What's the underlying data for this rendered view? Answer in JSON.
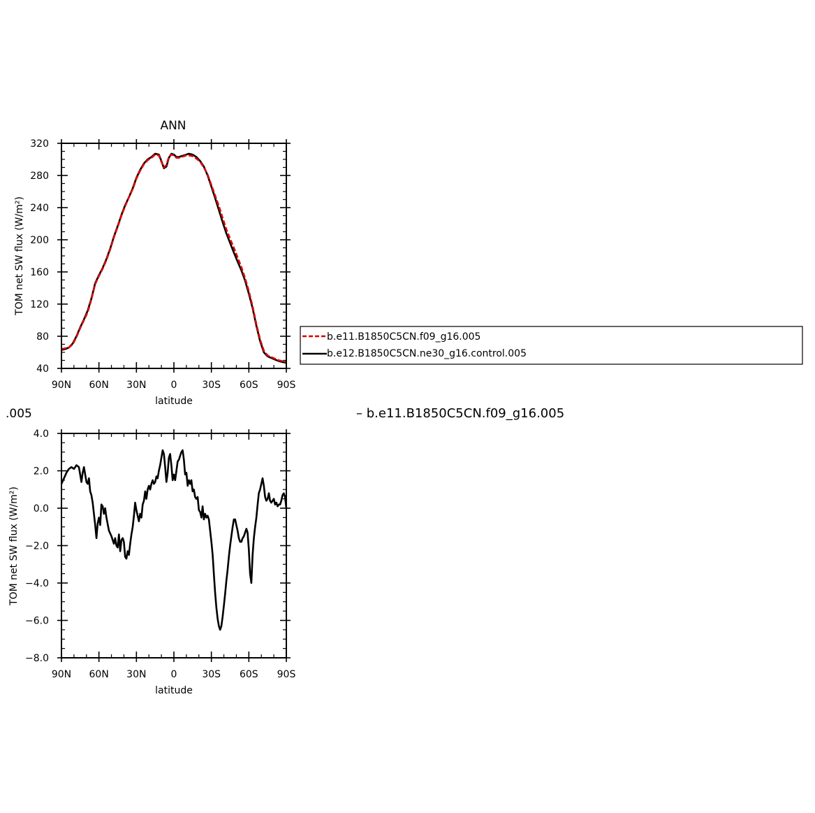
{
  "chart_data": [
    {
      "type": "line",
      "title": "ANN",
      "xlabel": "latitude",
      "ylabel": "TOM net SW flux (W/m²)",
      "xlim": [
        90,
        -90
      ],
      "ylim": [
        40,
        320
      ],
      "x_ticks": [
        90,
        60,
        30,
        0,
        -30,
        -60,
        -90
      ],
      "x_tick_labels": [
        "90N",
        "60N",
        "30N",
        "0",
        "30S",
        "60S",
        "90S"
      ],
      "y_ticks": [
        40,
        80,
        120,
        160,
        200,
        240,
        280,
        320
      ],
      "y_tick_labels": [
        "40",
        "80",
        "120",
        "160",
        "200",
        "240",
        "280",
        "320"
      ],
      "grid": false,
      "legend": "right",
      "series": [
        {
          "name": "b.e11.B1850C5CN.f09_g16.005",
          "color": "#e00000",
          "dash": "dashed",
          "x": [
            90,
            87,
            84,
            81,
            78,
            75,
            72,
            69,
            66,
            63,
            60,
            57,
            54,
            51,
            48,
            45,
            42,
            39,
            36,
            33,
            30,
            27,
            24,
            21,
            18,
            15,
            12,
            10,
            8,
            6,
            4,
            2,
            0,
            -2,
            -4,
            -6,
            -8,
            -10,
            -12,
            -15,
            -18,
            -21,
            -24,
            -27,
            -30,
            -33,
            -36,
            -39,
            -42,
            -45,
            -48,
            -51,
            -54,
            -57,
            -60,
            -63,
            -66,
            -69,
            -72,
            -75,
            -78,
            -81,
            -84,
            -87,
            -90
          ],
          "y": [
            64,
            65,
            66,
            70,
            79,
            90,
            100,
            110,
            126,
            145,
            155,
            164,
            175,
            188,
            203,
            216,
            230,
            242,
            253,
            263,
            276,
            286,
            294,
            299,
            302,
            306,
            305,
            297,
            290,
            293,
            303,
            306,
            305,
            302,
            302,
            303,
            304,
            305,
            305,
            304,
            301,
            297,
            290,
            281,
            268,
            255,
            242,
            227,
            213,
            201,
            190,
            178,
            166,
            152,
            136,
            117,
            95,
            76,
            62,
            56,
            54,
            52,
            50,
            49,
            48
          ]
        },
        {
          "name": "b.e12.B1850C5CN.ne30_g16.control.005",
          "color": "#000000",
          "dash": "solid",
          "x": [
            90,
            87,
            84,
            81,
            78,
            75,
            72,
            69,
            66,
            63,
            60,
            57,
            54,
            51,
            48,
            45,
            42,
            39,
            36,
            33,
            30,
            27,
            24,
            21,
            18,
            15,
            12,
            10,
            8,
            6,
            4,
            2,
            0,
            -2,
            -4,
            -6,
            -8,
            -10,
            -12,
            -15,
            -18,
            -21,
            -24,
            -27,
            -30,
            -33,
            -36,
            -39,
            -42,
            -45,
            -48,
            -51,
            -54,
            -57,
            -60,
            -63,
            -66,
            -69,
            -72,
            -75,
            -78,
            -81,
            -84,
            -87,
            -90
          ],
          "y": [
            63,
            64,
            66,
            71,
            80,
            91,
            101,
            112,
            127,
            146,
            156,
            165,
            176,
            189,
            204,
            217,
            231,
            243,
            253,
            264,
            277,
            287,
            295,
            300,
            303,
            307,
            306,
            298,
            289,
            291,
            302,
            307,
            306,
            303,
            303,
            304,
            305,
            306,
            307,
            306,
            303,
            298,
            291,
            280,
            266,
            252,
            237,
            222,
            208,
            196,
            184,
            173,
            162,
            149,
            133,
            115,
            93,
            74,
            60,
            55,
            53,
            51,
            49,
            48,
            47
          ]
        }
      ]
    },
    {
      "type": "line",
      "title": "",
      "xlabel": "latitude",
      "ylabel": "TOM net SW flux (W/m²)",
      "xlim": [
        90,
        -90
      ],
      "ylim": [
        -8,
        4
      ],
      "x_ticks": [
        90,
        60,
        30,
        0,
        -30,
        -60,
        -90
      ],
      "x_tick_labels": [
        "90N",
        "60N",
        "30N",
        "0",
        "30S",
        "60S",
        "90S"
      ],
      "y_ticks": [
        -8,
        -6,
        -4,
        -2,
        0,
        2,
        4
      ],
      "y_tick_labels": [
        "−8.0",
        "−6.0",
        "−4.0",
        "−2.0",
        "0.0",
        "2.0",
        "4.0"
      ],
      "grid": false,
      "series": [
        {
          "name": "",
          "color": "#000000",
          "dash": "solid",
          "x": [
            90,
            88,
            86,
            84,
            82,
            80,
            78,
            76,
            75,
            74,
            73,
            72,
            70,
            69,
            68,
            67,
            66,
            65,
            64,
            63,
            62,
            61,
            60,
            59,
            58,
            57,
            56,
            55,
            54,
            52,
            50,
            48,
            47,
            46,
            45,
            44,
            43,
            42,
            41,
            40,
            39,
            38,
            37,
            36,
            35,
            34,
            33,
            32,
            31,
            30,
            28,
            27,
            26,
            25,
            24,
            23,
            22,
            21,
            20,
            19,
            18,
            17,
            16,
            15,
            14,
            13,
            12,
            11,
            10,
            9,
            8,
            7,
            6,
            5,
            4,
            3,
            2,
            1,
            0,
            -1,
            -2,
            -3,
            -4,
            -5,
            -6,
            -7,
            -8,
            -9,
            -10,
            -11,
            -12,
            -13,
            -14,
            -15,
            -16,
            -17,
            -18,
            -19,
            -20,
            -21,
            -22,
            -23,
            -24,
            -25,
            -26,
            -27,
            -28,
            -29,
            -30,
            -31,
            -32,
            -33,
            -34,
            -35,
            -36,
            -37,
            -38,
            -39,
            -40,
            -41,
            -42,
            -43,
            -44,
            -45,
            -46,
            -47,
            -48,
            -49,
            -50,
            -51,
            -52,
            -53,
            -54,
            -55,
            -56,
            -57,
            -58,
            -59,
            -60,
            -61,
            -62,
            -63,
            -64,
            -65,
            -66,
            -67,
            -68,
            -69,
            -70,
            -71,
            -72,
            -73,
            -74,
            -75,
            -76,
            -77,
            -78,
            -79,
            -80,
            -81,
            -82,
            -83,
            -84,
            -85,
            -86,
            -87,
            -88,
            -89,
            -90
          ],
          "y": [
            1.3,
            1.6,
            1.9,
            2.1,
            2.2,
            2.1,
            2.3,
            2.2,
            1.8,
            1.4,
            1.9,
            2.2,
            1.4,
            1.3,
            1.6,
            0.9,
            0.7,
            0.3,
            -0.3,
            -0.9,
            -1.6,
            -0.8,
            -0.5,
            -0.9,
            0.2,
            0.1,
            -0.3,
            0.0,
            -0.5,
            -1.2,
            -1.5,
            -1.9,
            -1.6,
            -2.0,
            -2.1,
            -1.4,
            -2.3,
            -1.7,
            -1.6,
            -1.8,
            -2.6,
            -2.7,
            -2.3,
            -2.5,
            -1.9,
            -1.4,
            -1.0,
            -0.4,
            0.3,
            -0.1,
            -0.7,
            -0.3,
            -0.5,
            0.2,
            0.4,
            0.9,
            0.5,
            1.0,
            1.2,
            1.0,
            1.3,
            1.5,
            1.3,
            1.4,
            1.7,
            1.6,
            2.0,
            2.3,
            2.7,
            3.1,
            2.9,
            2.2,
            1.4,
            1.9,
            2.7,
            2.9,
            2.3,
            1.5,
            1.8,
            1.5,
            2.0,
            2.5,
            2.6,
            2.8,
            3.0,
            3.1,
            2.6,
            1.8,
            1.9,
            1.2,
            1.5,
            1.3,
            1.5,
            0.9,
            1.0,
            0.6,
            0.5,
            0.6,
            -0.1,
            -0.2,
            -0.5,
            0.1,
            -0.6,
            -0.3,
            -0.5,
            -0.4,
            -0.6,
            -1.2,
            -1.8,
            -2.5,
            -3.5,
            -4.5,
            -5.3,
            -5.9,
            -6.3,
            -6.5,
            -6.3,
            -5.8,
            -5.2,
            -4.6,
            -3.9,
            -3.3,
            -2.6,
            -2.0,
            -1.5,
            -1.0,
            -0.6,
            -0.6,
            -0.9,
            -1.2,
            -1.6,
            -1.8,
            -1.8,
            -1.6,
            -1.5,
            -1.3,
            -1.1,
            -1.3,
            -2.2,
            -3.5,
            -4.0,
            -2.5,
            -1.6,
            -1.0,
            -0.5,
            0.2,
            0.8,
            1.0,
            1.3,
            1.6,
            1.2,
            0.6,
            0.4,
            0.5,
            0.8,
            0.4,
            0.3,
            0.4,
            0.5,
            0.2,
            0.3,
            0.1,
            0.2,
            0.2,
            0.4,
            0.7,
            0.8,
            0.6,
            0.0
          ]
        }
      ]
    }
  ],
  "fragments": {
    "left_text": ".005",
    "right_text": "– b.e11.B1850C5CN.f09_g16.005"
  }
}
